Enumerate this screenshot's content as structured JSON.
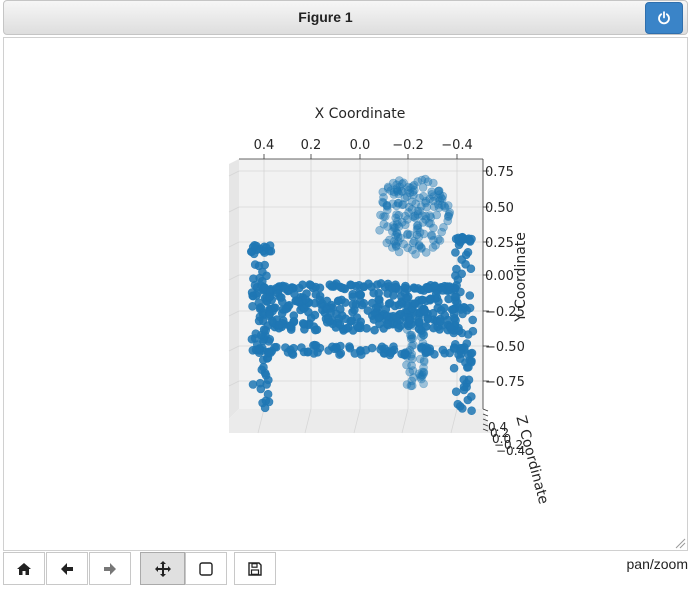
{
  "window": {
    "title": "Figure 1"
  },
  "toolbar": {
    "buttons": [
      {
        "name": "home-button",
        "icon": "home-icon"
      },
      {
        "name": "back-button",
        "icon": "arrow-left-icon"
      },
      {
        "name": "forward-button",
        "icon": "arrow-right-icon"
      },
      {
        "name": "pan-button",
        "icon": "move-icon",
        "active": true
      },
      {
        "name": "zoom-button",
        "icon": "zoom-rect-icon"
      },
      {
        "name": "save-button",
        "icon": "save-icon"
      }
    ],
    "mode": "pan/zoom"
  },
  "colors": {
    "points": "#1f77b4",
    "power_button": "#3a84c8"
  },
  "chart_data": {
    "type": "scatter",
    "projection": "3d",
    "description": "3D point cloud of a bench with a backrest",
    "xlabel": "X Coordinate",
    "ylabel": "Y Coordinate",
    "zlabel": "Z Coordinate",
    "x_ticks": [
      "0.4",
      "0.2",
      "0.0",
      "−0.2",
      "−0.4"
    ],
    "y_ticks": [
      "0.75",
      "0.50",
      "0.25",
      "0.00",
      "−0.25",
      "−0.50",
      "−0.75"
    ],
    "z_ticks": [
      "0.4",
      "0.2",
      "0.0",
      "−0.2",
      "−0.4"
    ],
    "xlim": [
      0.5,
      -0.5
    ],
    "ylim": [
      -0.9,
      0.8
    ],
    "grid": true
  }
}
